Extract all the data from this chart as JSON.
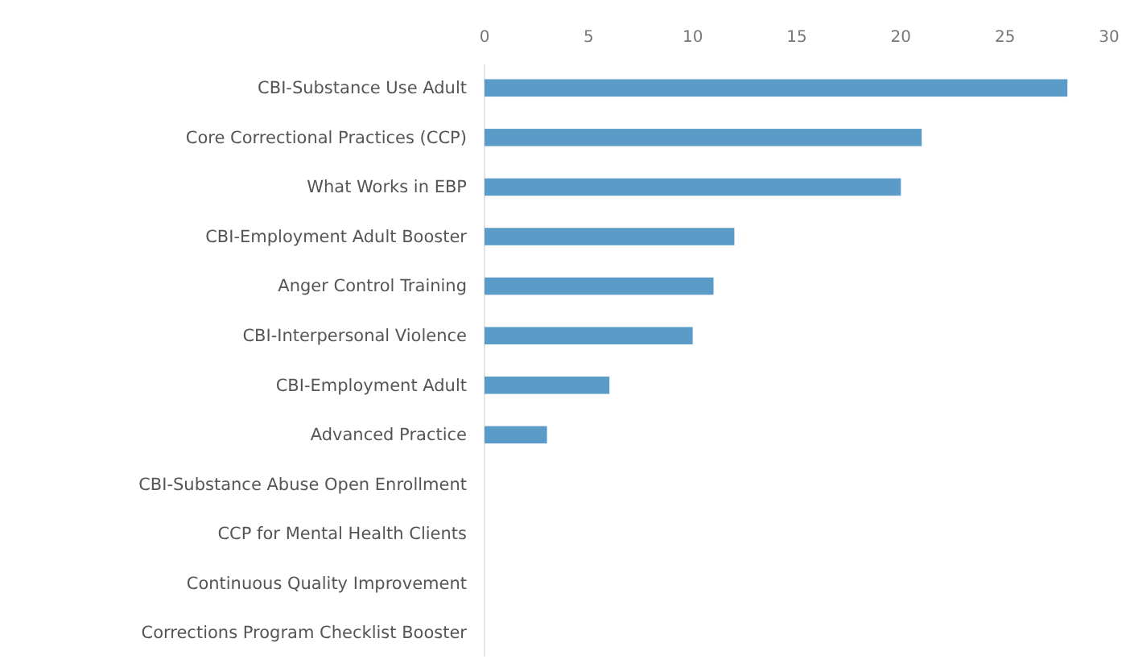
{
  "chart_data": {
    "type": "bar",
    "orientation": "horizontal",
    "categories": [
      "CBI-Substance Use Adult",
      "Core Correctional Practices (CCP)",
      "What Works in EBP",
      "CBI-Employment Adult Booster",
      "Anger Control Training",
      "CBI-Interpersonal Violence",
      "CBI-Employment Adult",
      "Advanced Practice",
      "CBI-Substance Abuse Open Enrollment",
      "CCP for Mental Health Clients",
      "Continuous Quality Improvement",
      "Corrections Program Checklist Booster"
    ],
    "values": [
      28,
      21,
      20,
      12,
      11,
      10,
      6,
      3,
      0,
      0,
      0,
      0
    ],
    "color": "#5b9bc8",
    "xlim": [
      0,
      30
    ],
    "xticks": [
      0,
      5,
      10,
      15,
      20,
      25,
      30
    ],
    "grid": false
  }
}
